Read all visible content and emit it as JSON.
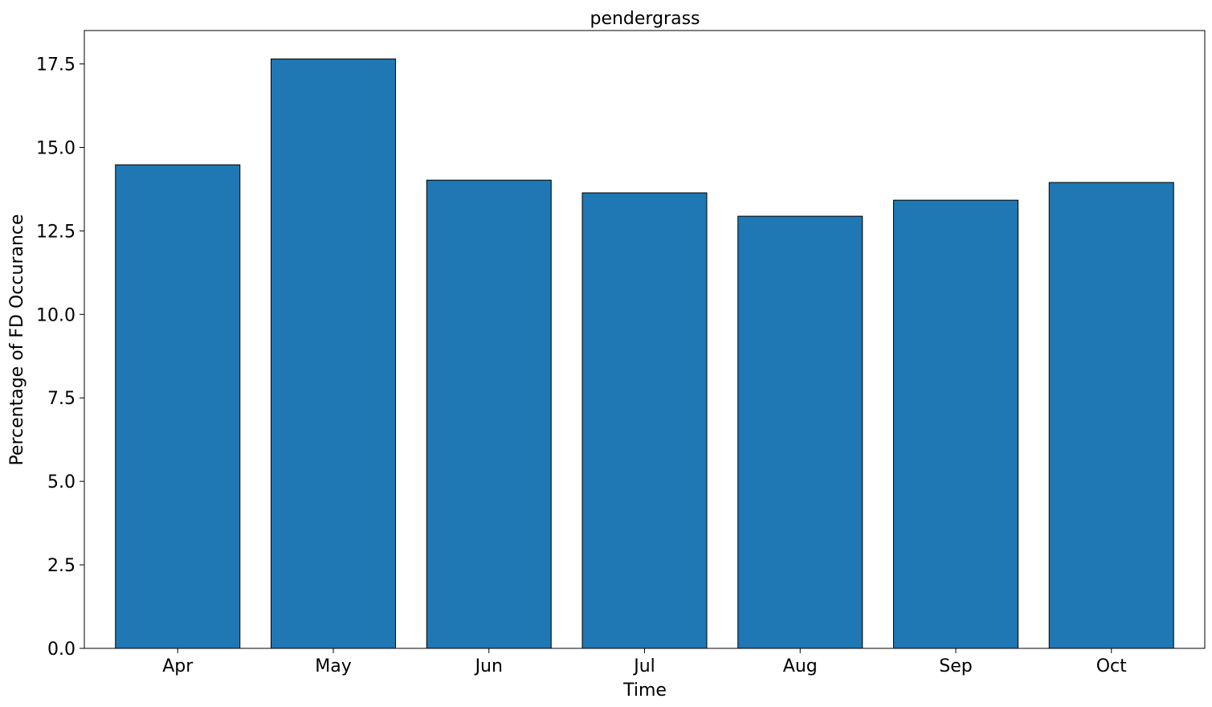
{
  "chart_data": {
    "type": "bar",
    "title": "pendergrass",
    "xlabel": "Time",
    "ylabel": "Percentage of FD Occurance",
    "categories": [
      "Apr",
      "May",
      "Jun",
      "Jul",
      "Aug",
      "Sep",
      "Oct"
    ],
    "values": [
      14.48,
      17.65,
      14.02,
      13.64,
      12.94,
      13.42,
      13.95
    ],
    "ylim": [
      0,
      18.5
    ],
    "yticks": [
      0.0,
      2.5,
      5.0,
      7.5,
      10.0,
      12.5,
      15.0,
      17.5
    ],
    "ytick_labels": [
      "0.0",
      "2.5",
      "5.0",
      "7.5",
      "10.0",
      "12.5",
      "15.0",
      "17.5"
    ],
    "grid": false,
    "colors": {
      "bar": "#1f77b4",
      "edge": "#000000"
    }
  }
}
